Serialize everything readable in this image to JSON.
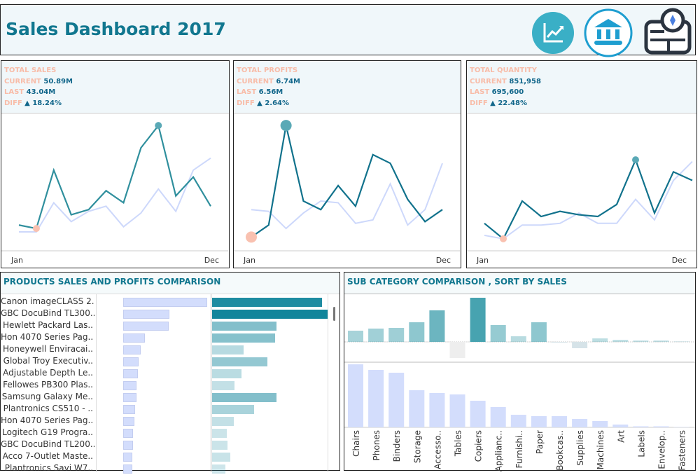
{
  "header": {
    "title": "Sales Dashboard 2017",
    "icons": [
      "chart-trend-icon",
      "bank-icon",
      "map-compass-icon"
    ]
  },
  "kpis": [
    {
      "title": "TOTAL SALES",
      "current_label": "CURRENT",
      "current": "50.89M",
      "last_label": "LAST",
      "last": "43.04M",
      "diff_label": "DIFF",
      "diff": "▲ 18.24%",
      "start": "Jan",
      "end": "Dec",
      "current_series": [
        1.5,
        1.3,
        4.7,
        2.1,
        2.4,
        3.5,
        2.8,
        6.0,
        7.3,
        3.2,
        4.3,
        2.6
      ],
      "last_series": [
        1.1,
        1.1,
        2.8,
        1.7,
        2.3,
        2.6,
        1.4,
        2.2,
        3.6,
        2.3,
        4.7,
        5.4
      ],
      "ylim": [
        0,
        8
      ],
      "max_month": 9,
      "min_month": 2,
      "big_markers": false
    },
    {
      "title": "TOTAL PROFITS",
      "current_label": "CURRENT",
      "current": "6.74M",
      "last_label": "LAST",
      "last": "6.56M",
      "diff_label": "DIFF",
      "diff": "▲ 2.64%",
      "start": "Jan",
      "end": "Dec",
      "current_series": [
        0.8,
        1.5,
        7.3,
        2.9,
        2.4,
        3.8,
        2.6,
        5.6,
        5.1,
        3.0,
        1.7,
        2.4
      ],
      "last_series": [
        2.4,
        2.3,
        1.3,
        2.2,
        2.9,
        2.8,
        1.6,
        1.8,
        3.9,
        1.5,
        2.4,
        5.1
      ],
      "ylim": [
        0,
        8
      ],
      "max_month": 3,
      "min_month": 1,
      "big_markers": true
    },
    {
      "title": "TOTAL QUANTITY",
      "current_label": "CURRENT",
      "current": "851,958",
      "last_label": "LAST",
      "last": "695,600",
      "diff_label": "DIFF",
      "diff": "▲ 22.48%",
      "start": "Jan",
      "end": "Dec",
      "current_series": [
        1.6,
        0.7,
        2.9,
        2.0,
        2.3,
        2.1,
        2.0,
        2.7,
        5.3,
        2.2,
        4.6,
        4.1
      ],
      "last_series": [
        0.9,
        0.7,
        1.5,
        1.5,
        1.6,
        2.2,
        1.6,
        1.6,
        3.0,
        1.8,
        4.1,
        5.2
      ],
      "ylim": [
        0,
        8
      ],
      "max_month": 9,
      "min_month": 2,
      "big_markers": false
    }
  ],
  "colors": {
    "current": "#2f8f9d",
    "current_profit": "#11728c",
    "last": "#cdd8fb",
    "min_marker": "#f9c1b0",
    "sales_bar": "#d3ddfc",
    "profit_bar": "#11859b",
    "title": "#11778f"
  },
  "products": {
    "title": "PRODUCTS SALES AND PROFITS COMPARISON",
    "items": [
      {
        "name": "Canon imageCLASS 2..",
        "sales": 120,
        "profit": 157
      },
      {
        "name": "GBC DocuBind TL300..",
        "sales": 66,
        "profit": 165
      },
      {
        "name": "Hewlett Packard Las..",
        "sales": 65,
        "profit": 92
      },
      {
        "name": "Hon 4070 Series Pag..",
        "sales": 31,
        "profit": 90
      },
      {
        "name": "Honeywell Enviracai..",
        "sales": 25,
        "profit": 45
      },
      {
        "name": "Global Troy Executiv..",
        "sales": 22,
        "profit": 79
      },
      {
        "name": "Adjustable Depth Le..",
        "sales": 21,
        "profit": 42
      },
      {
        "name": "Fellowes PB300 Plas..",
        "sales": 19,
        "profit": 32
      },
      {
        "name": "Samsung Galaxy Me..",
        "sales": 19,
        "profit": 92
      },
      {
        "name": "Plantronics CS510 - ..",
        "sales": 17,
        "profit": 60
      },
      {
        "name": "Hon 4070 Series Pag..",
        "sales": 16,
        "profit": 31
      },
      {
        "name": "Logitech G19 Progra..",
        "sales": 14,
        "profit": 21
      },
      {
        "name": "GBC DocuBind TL200..",
        "sales": 14,
        "profit": 22
      },
      {
        "name": "Acco 7-Outlet Maste..",
        "sales": 13,
        "profit": 26
      },
      {
        "name": "Plantronics Savi W7..",
        "sales": 13,
        "profit": 19
      }
    ]
  },
  "subcat": {
    "title": "SUB CATEGORY COMPARISON , SORT BY SALES",
    "categories": [
      "Chairs",
      "Phones",
      "Binders",
      "Storage",
      "Accesso..",
      "Tables",
      "Copiers",
      "Applianc..",
      "Furnishi..",
      "Paper",
      "Bookcas..",
      "Supplies",
      "Machines",
      "Art",
      "Labels",
      "Envelop..",
      "Fasteners"
    ],
    "profit": [
      16,
      19,
      20,
      28,
      45,
      -23,
      63,
      24,
      8,
      28,
      -1,
      -9,
      5,
      3,
      2,
      2,
      0.5
    ],
    "sales": [
      90,
      82,
      78,
      53,
      49,
      47,
      38,
      29,
      18,
      16,
      16,
      12,
      9,
      4,
      1.5,
      1.5,
      0.5
    ]
  }
}
